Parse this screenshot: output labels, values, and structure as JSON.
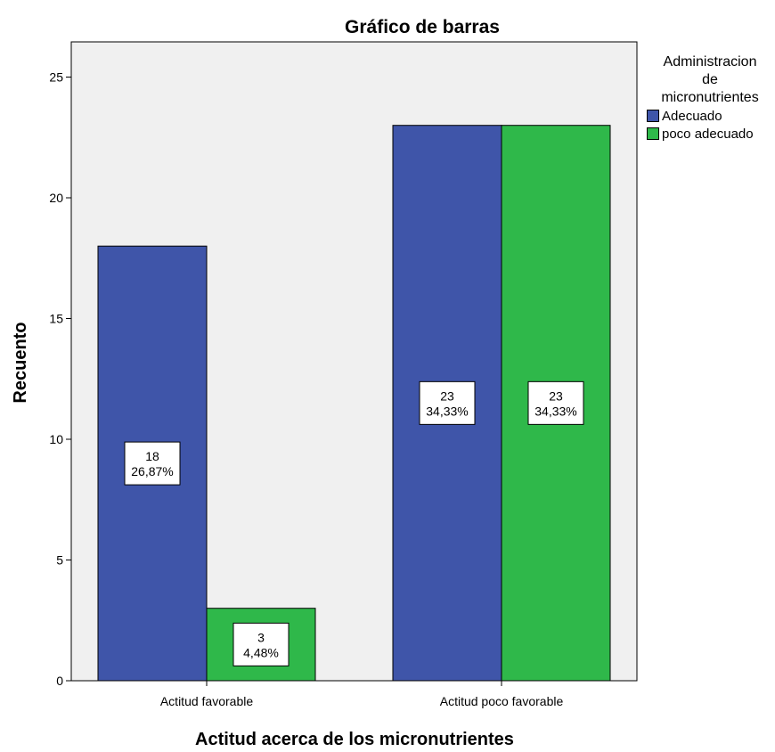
{
  "chart_data": {
    "type": "bar",
    "title": "Gráfico de barras",
    "xlabel": "Actitud acerca de los micronutrientes",
    "ylabel": "Recuento",
    "categories": [
      "Actitud favorable",
      "Actitud poco favorable"
    ],
    "series": [
      {
        "name": "Adecuado",
        "color": "#3f55a9",
        "values": [
          18,
          23
        ],
        "percent_labels": [
          "26,87%",
          "34,33%"
        ]
      },
      {
        "name": "poco adecuado",
        "color": "#2fb84a",
        "values": [
          3,
          23
        ],
        "percent_labels": [
          "4,48%",
          "34,33%"
        ]
      }
    ],
    "ylim": [
      0,
      26
    ],
    "yticks": [
      0,
      5,
      10,
      15,
      20,
      25
    ],
    "grid": false,
    "plot_background": "#f0f0f0",
    "legend": {
      "title_lines": [
        "Administracion",
        "de",
        "micronutrientes"
      ],
      "position": "right"
    }
  }
}
